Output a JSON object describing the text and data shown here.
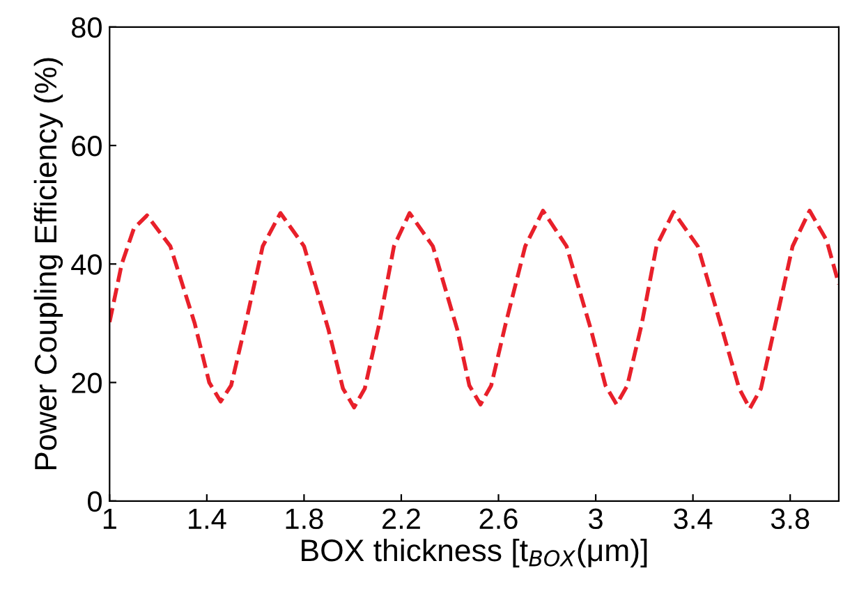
{
  "chart_data": {
    "type": "line",
    "xlabel": "BOX thickness [t$_{BOX}$(μm)]",
    "ylabel": "Power Coupling Efficiency (%)",
    "xlim": [
      1,
      4
    ],
    "xticks": [
      1,
      1.4,
      1.8,
      2.2,
      2.6,
      3,
      3.4,
      3.8
    ],
    "ylim": [
      0,
      80
    ],
    "yticks": [
      0,
      20,
      40,
      60,
      80
    ],
    "grid": false,
    "line_style": "dashed",
    "series": [
      {
        "color": "#e8202a",
        "x": [
          1.0,
          1.05,
          1.1,
          1.154,
          1.25,
          1.35,
          1.41,
          1.457,
          1.5,
          1.56,
          1.63,
          1.703,
          1.8,
          1.9,
          1.96,
          2.006,
          2.05,
          2.11,
          2.17,
          2.234,
          2.33,
          2.43,
          2.48,
          2.526,
          2.57,
          2.63,
          2.71,
          2.783,
          2.88,
          2.98,
          3.04,
          3.086,
          3.13,
          3.19,
          3.25,
          3.32,
          3.42,
          3.52,
          3.59,
          3.634,
          3.68,
          3.74,
          3.81,
          3.88,
          3.95,
          4.0
        ],
        "values": [
          30.2,
          40,
          46,
          48.2,
          43,
          30,
          20,
          16.8,
          19.5,
          30,
          43,
          48.6,
          43,
          29,
          19,
          15.8,
          19,
          30,
          43,
          48.6,
          43,
          29,
          19.5,
          16.3,
          19.5,
          30,
          43,
          49,
          43,
          29,
          19.5,
          16.3,
          19.5,
          30,
          43,
          48.8,
          43,
          29,
          19,
          15.6,
          19,
          30,
          43,
          49,
          44,
          36.6
        ]
      }
    ]
  }
}
